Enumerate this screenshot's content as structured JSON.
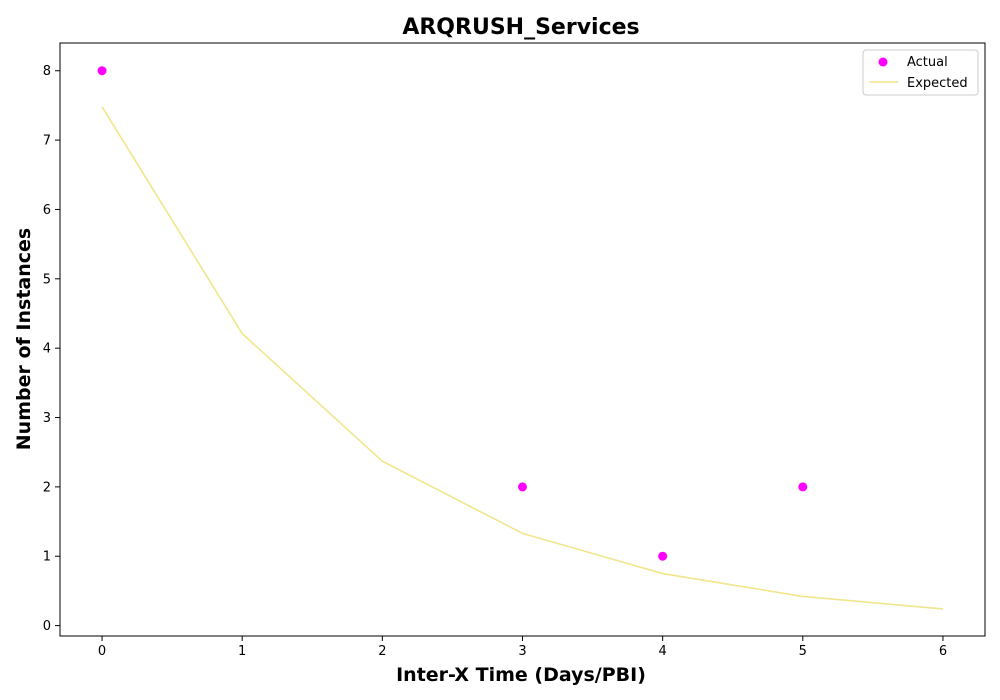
{
  "chart_data": {
    "type": "scatter",
    "title": "ARQRUSH_Services",
    "xlabel": "Inter-X Time (Days/PBI)",
    "ylabel": "Number of Instances",
    "xlim": [
      -0.3,
      6.3
    ],
    "ylim": [
      -0.15,
      8.4
    ],
    "xticks": [
      0,
      1,
      2,
      3,
      4,
      5,
      6
    ],
    "yticks": [
      0,
      1,
      2,
      3,
      4,
      5,
      6,
      7,
      8
    ],
    "grid": false,
    "legend_position": "top-right",
    "series": [
      {
        "name": "Actual",
        "type": "scatter",
        "color": "#ff00ff",
        "x": [
          0,
          3,
          4,
          5
        ],
        "y": [
          8,
          2,
          1,
          2
        ]
      },
      {
        "name": "Expected",
        "type": "line",
        "color": "#f0e68c",
        "x": [
          0,
          1,
          2,
          3,
          4,
          5,
          6
        ],
        "y": [
          7.48,
          4.21,
          2.37,
          1.33,
          0.75,
          0.42,
          0.24
        ]
      }
    ]
  }
}
